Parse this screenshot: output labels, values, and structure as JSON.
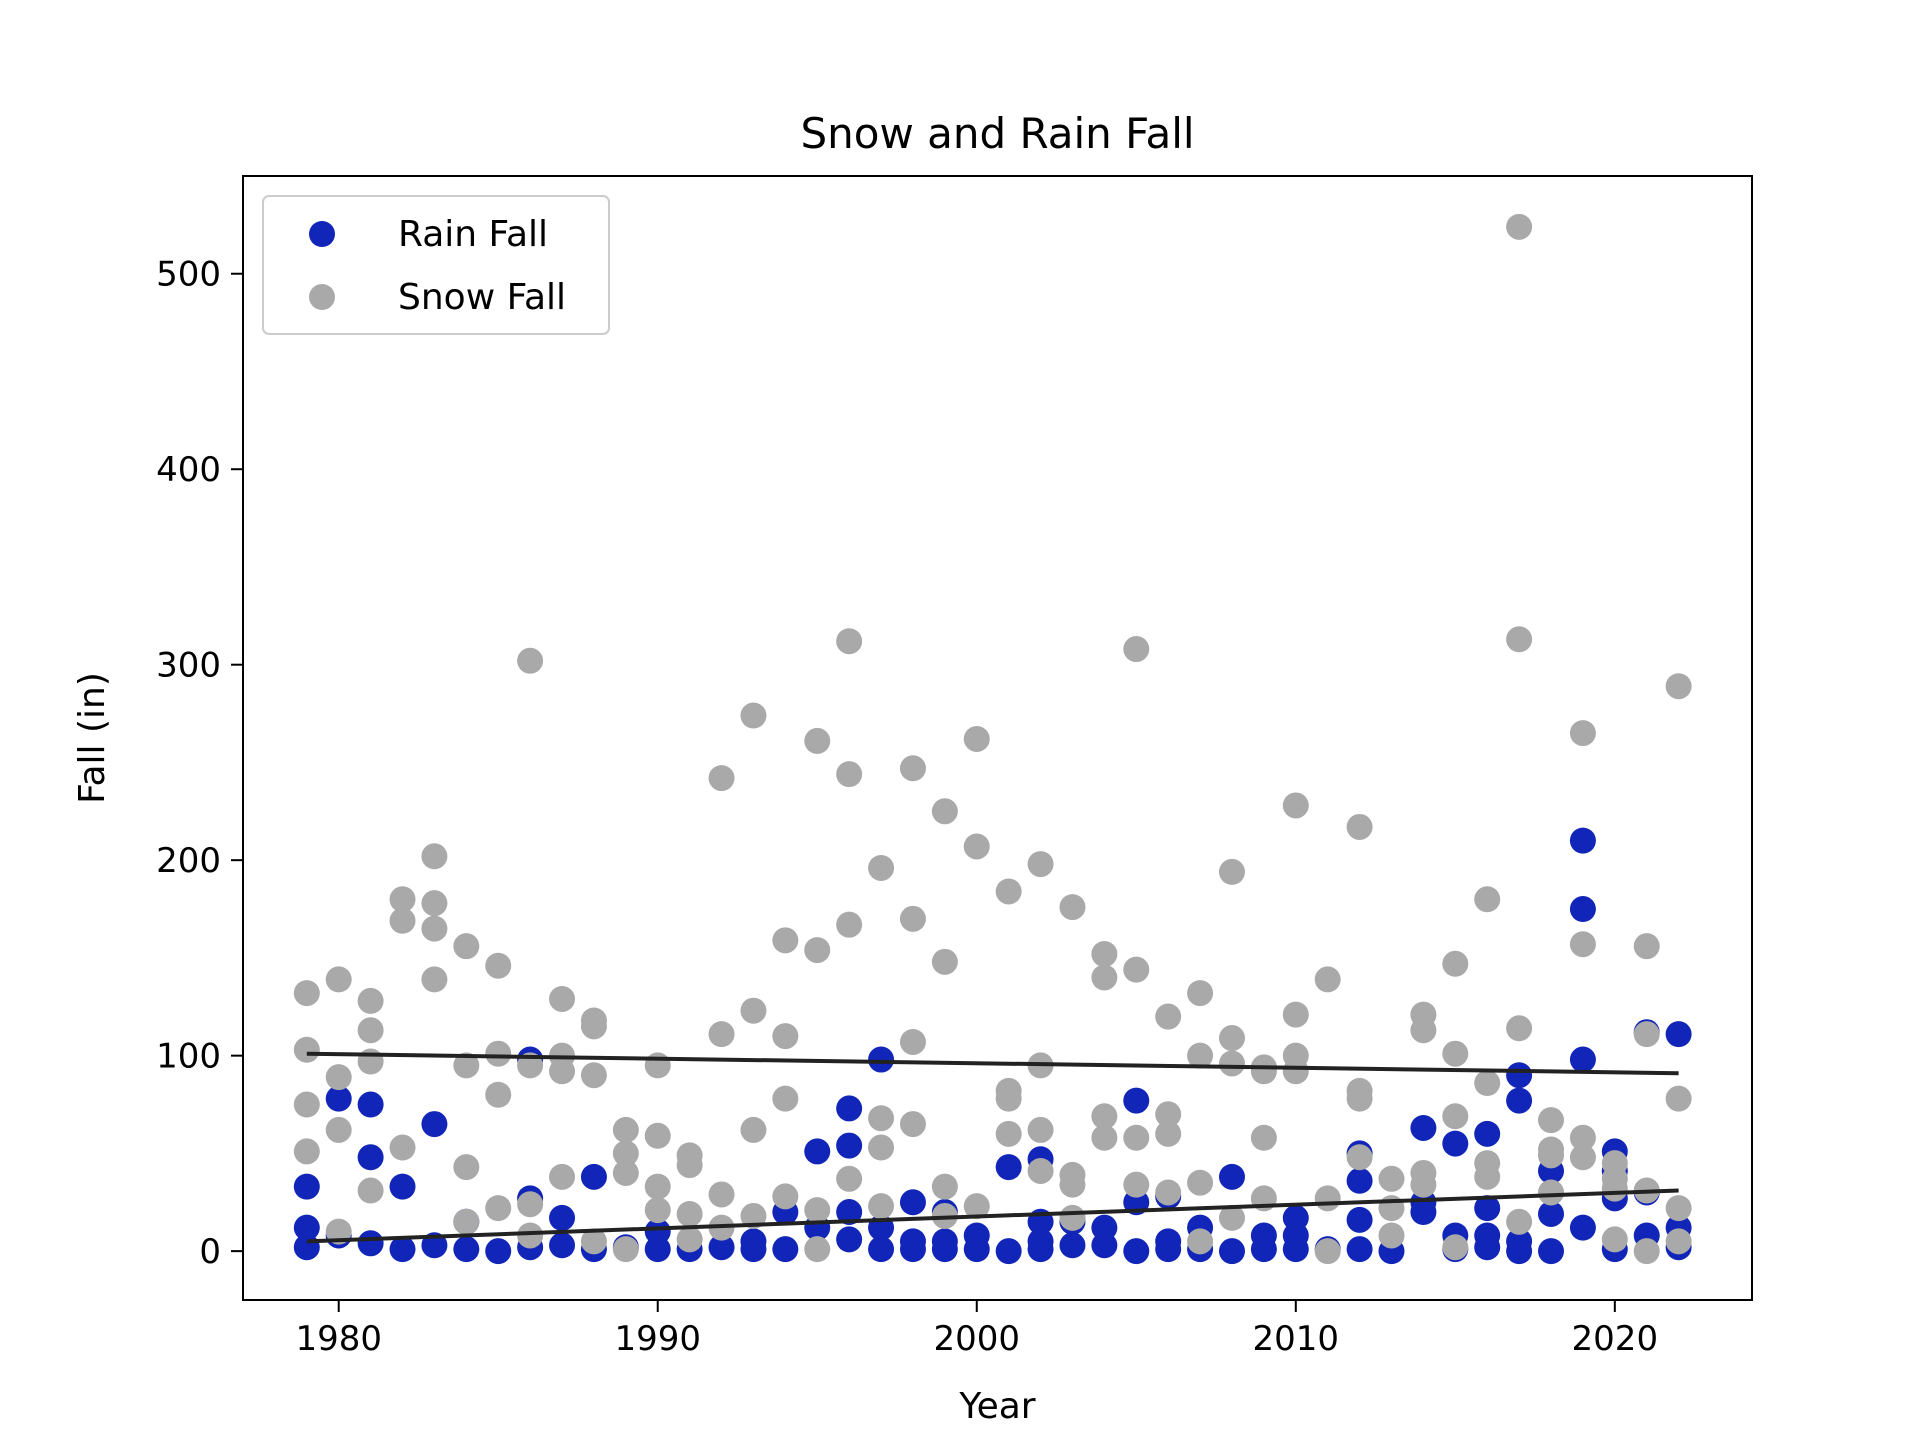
{
  "chart_data": {
    "type": "scatter",
    "title": "Snow and Rain Fall",
    "xlabel": "Year",
    "ylabel": "Fall (in)",
    "xlim": [
      1977,
      2024.3
    ],
    "ylim": [
      -25,
      550
    ],
    "xticks": [
      "1980",
      "1990",
      "2000",
      "2010",
      "2020"
    ],
    "yticks": [
      "0",
      "100",
      "200",
      "300",
      "400",
      "500"
    ],
    "grid": false,
    "legend_position": "top-left",
    "series": [
      {
        "name": "Rain Fall",
        "color": "#1126b8",
        "points": [
          [
            1979,
            33
          ],
          [
            1979,
            12
          ],
          [
            1979,
            2
          ],
          [
            1980,
            78
          ],
          [
            1980,
            8
          ],
          [
            1981,
            75
          ],
          [
            1981,
            48
          ],
          [
            1981,
            4
          ],
          [
            1982,
            33
          ],
          [
            1982,
            1
          ],
          [
            1983,
            65
          ],
          [
            1983,
            3
          ],
          [
            1984,
            15
          ],
          [
            1984,
            1
          ],
          [
            1985,
            0
          ],
          [
            1986,
            98
          ],
          [
            1986,
            27
          ],
          [
            1986,
            2
          ],
          [
            1987,
            17
          ],
          [
            1987,
            3
          ],
          [
            1988,
            38
          ],
          [
            1988,
            1
          ],
          [
            1989,
            2
          ],
          [
            1990,
            10
          ],
          [
            1990,
            1
          ],
          [
            1991,
            1
          ],
          [
            1992,
            2
          ],
          [
            1993,
            5
          ],
          [
            1993,
            1
          ],
          [
            1994,
            20
          ],
          [
            1994,
            1
          ],
          [
            1995,
            51
          ],
          [
            1995,
            12
          ],
          [
            1996,
            73
          ],
          [
            1996,
            54
          ],
          [
            1996,
            20
          ],
          [
            1996,
            6
          ],
          [
            1997,
            98
          ],
          [
            1997,
            12
          ],
          [
            1997,
            1
          ],
          [
            1998,
            25
          ],
          [
            1998,
            5
          ],
          [
            1998,
            1
          ],
          [
            1999,
            20
          ],
          [
            1999,
            5
          ],
          [
            1999,
            1
          ],
          [
            2000,
            8
          ],
          [
            2000,
            1
          ],
          [
            2001,
            43
          ],
          [
            2001,
            0
          ],
          [
            2002,
            47
          ],
          [
            2002,
            15
          ],
          [
            2002,
            5
          ],
          [
            2002,
            1
          ],
          [
            2003,
            15
          ],
          [
            2003,
            3
          ],
          [
            2004,
            12
          ],
          [
            2004,
            3
          ],
          [
            2005,
            77
          ],
          [
            2005,
            25
          ],
          [
            2005,
            0
          ],
          [
            2006,
            28
          ],
          [
            2006,
            5
          ],
          [
            2006,
            1
          ],
          [
            2007,
            12
          ],
          [
            2007,
            1
          ],
          [
            2008,
            38
          ],
          [
            2008,
            0
          ],
          [
            2009,
            8
          ],
          [
            2009,
            1
          ],
          [
            2010,
            17
          ],
          [
            2010,
            8
          ],
          [
            2010,
            1
          ],
          [
            2011,
            1
          ],
          [
            2012,
            50
          ],
          [
            2012,
            36
          ],
          [
            2012,
            16
          ],
          [
            2012,
            1
          ],
          [
            2013,
            0
          ],
          [
            2014,
            63
          ],
          [
            2014,
            25
          ],
          [
            2014,
            20
          ],
          [
            2015,
            55
          ],
          [
            2015,
            8
          ],
          [
            2015,
            1
          ],
          [
            2016,
            60
          ],
          [
            2016,
            22
          ],
          [
            2016,
            8
          ],
          [
            2016,
            2
          ],
          [
            2017,
            90
          ],
          [
            2017,
            77
          ],
          [
            2017,
            5
          ],
          [
            2017,
            0
          ],
          [
            2018,
            41
          ],
          [
            2018,
            19
          ],
          [
            2018,
            0
          ],
          [
            2019,
            210
          ],
          [
            2019,
            175
          ],
          [
            2019,
            98
          ],
          [
            2019,
            12
          ],
          [
            2020,
            51
          ],
          [
            2020,
            41
          ],
          [
            2020,
            27
          ],
          [
            2020,
            1
          ],
          [
            2021,
            112
          ],
          [
            2021,
            30
          ],
          [
            2021,
            8
          ],
          [
            2022,
            111
          ],
          [
            2022,
            12
          ],
          [
            2022,
            2
          ]
        ]
      },
      {
        "name": "Snow Fall",
        "color": "#a9a9a9",
        "points": [
          [
            1979,
            132
          ],
          [
            1979,
            103
          ],
          [
            1979,
            75
          ],
          [
            1979,
            51
          ],
          [
            1980,
            139
          ],
          [
            1980,
            89
          ],
          [
            1980,
            62
          ],
          [
            1980,
            10
          ],
          [
            1981,
            128
          ],
          [
            1981,
            113
          ],
          [
            1981,
            97
          ],
          [
            1981,
            31
          ],
          [
            1982,
            180
          ],
          [
            1982,
            169
          ],
          [
            1982,
            53
          ],
          [
            1983,
            202
          ],
          [
            1983,
            178
          ],
          [
            1983,
            165
          ],
          [
            1983,
            139
          ],
          [
            1984,
            156
          ],
          [
            1984,
            95
          ],
          [
            1984,
            43
          ],
          [
            1984,
            15
          ],
          [
            1985,
            146
          ],
          [
            1985,
            101
          ],
          [
            1985,
            80
          ],
          [
            1985,
            22
          ],
          [
            1986,
            302
          ],
          [
            1986,
            95
          ],
          [
            1986,
            24
          ],
          [
            1986,
            8
          ],
          [
            1987,
            129
          ],
          [
            1987,
            100
          ],
          [
            1987,
            92
          ],
          [
            1987,
            38
          ],
          [
            1988,
            118
          ],
          [
            1988,
            115
          ],
          [
            1988,
            90
          ],
          [
            1988,
            5
          ],
          [
            1989,
            62
          ],
          [
            1989,
            50
          ],
          [
            1989,
            40
          ],
          [
            1989,
            1
          ],
          [
            1990,
            95
          ],
          [
            1990,
            59
          ],
          [
            1990,
            33
          ],
          [
            1990,
            21
          ],
          [
            1991,
            49
          ],
          [
            1991,
            44
          ],
          [
            1991,
            19
          ],
          [
            1991,
            6
          ],
          [
            1992,
            242
          ],
          [
            1992,
            111
          ],
          [
            1992,
            29
          ],
          [
            1992,
            12
          ],
          [
            1993,
            274
          ],
          [
            1993,
            123
          ],
          [
            1993,
            62
          ],
          [
            1993,
            18
          ],
          [
            1994,
            159
          ],
          [
            1994,
            110
          ],
          [
            1994,
            78
          ],
          [
            1994,
            28
          ],
          [
            1995,
            261
          ],
          [
            1995,
            154
          ],
          [
            1995,
            21
          ],
          [
            1995,
            1
          ],
          [
            1996,
            312
          ],
          [
            1996,
            244
          ],
          [
            1996,
            167
          ],
          [
            1996,
            37
          ],
          [
            1997,
            196
          ],
          [
            1997,
            68
          ],
          [
            1997,
            53
          ],
          [
            1997,
            23
          ],
          [
            1998,
            247
          ],
          [
            1998,
            170
          ],
          [
            1998,
            107
          ],
          [
            1998,
            65
          ],
          [
            1999,
            225
          ],
          [
            1999,
            148
          ],
          [
            1999,
            33
          ],
          [
            1999,
            18
          ],
          [
            2000,
            262
          ],
          [
            2000,
            207
          ],
          [
            2000,
            23
          ],
          [
            2001,
            184
          ],
          [
            2001,
            82
          ],
          [
            2001,
            78
          ],
          [
            2001,
            60
          ],
          [
            2002,
            198
          ],
          [
            2002,
            95
          ],
          [
            2002,
            62
          ],
          [
            2002,
            41
          ],
          [
            2003,
            176
          ],
          [
            2003,
            39
          ],
          [
            2003,
            34
          ],
          [
            2003,
            17
          ],
          [
            2004,
            152
          ],
          [
            2004,
            140
          ],
          [
            2004,
            69
          ],
          [
            2004,
            58
          ],
          [
            2005,
            308
          ],
          [
            2005,
            144
          ],
          [
            2005,
            58
          ],
          [
            2005,
            34
          ],
          [
            2006,
            120
          ],
          [
            2006,
            70
          ],
          [
            2006,
            60
          ],
          [
            2006,
            30
          ],
          [
            2007,
            132
          ],
          [
            2007,
            100
          ],
          [
            2007,
            35
          ],
          [
            2007,
            5
          ],
          [
            2008,
            194
          ],
          [
            2008,
            109
          ],
          [
            2008,
            96
          ],
          [
            2008,
            17
          ],
          [
            2009,
            94
          ],
          [
            2009,
            92
          ],
          [
            2009,
            58
          ],
          [
            2009,
            27
          ],
          [
            2010,
            228
          ],
          [
            2010,
            121
          ],
          [
            2010,
            100
          ],
          [
            2010,
            92
          ],
          [
            2011,
            139
          ],
          [
            2011,
            27
          ],
          [
            2011,
            0
          ],
          [
            2012,
            217
          ],
          [
            2012,
            82
          ],
          [
            2012,
            78
          ],
          [
            2012,
            48
          ],
          [
            2013,
            37
          ],
          [
            2013,
            22
          ],
          [
            2013,
            8
          ],
          [
            2014,
            121
          ],
          [
            2014,
            113
          ],
          [
            2014,
            40
          ],
          [
            2014,
            34
          ],
          [
            2015,
            147
          ],
          [
            2015,
            101
          ],
          [
            2015,
            69
          ],
          [
            2015,
            2
          ],
          [
            2016,
            180
          ],
          [
            2016,
            86
          ],
          [
            2016,
            45
          ],
          [
            2016,
            38
          ],
          [
            2017,
            524
          ],
          [
            2017,
            313
          ],
          [
            2017,
            114
          ],
          [
            2017,
            15
          ],
          [
            2018,
            67
          ],
          [
            2018,
            52
          ],
          [
            2018,
            49
          ],
          [
            2018,
            30
          ],
          [
            2019,
            265
          ],
          [
            2019,
            157
          ],
          [
            2019,
            58
          ],
          [
            2019,
            48
          ],
          [
            2020,
            45
          ],
          [
            2020,
            37
          ],
          [
            2020,
            32
          ],
          [
            2020,
            6
          ],
          [
            2021,
            156
          ],
          [
            2021,
            111
          ],
          [
            2021,
            31
          ],
          [
            2021,
            0
          ],
          [
            2022,
            289
          ],
          [
            2022,
            78
          ],
          [
            2022,
            22
          ],
          [
            2022,
            5
          ]
        ]
      }
    ],
    "trend_lines": [
      {
        "color": "#222222",
        "x": [
          1979,
          2022
        ],
        "y": [
          101,
          91
        ]
      },
      {
        "color": "#222222",
        "x": [
          1979,
          2022
        ],
        "y": [
          5,
          31
        ]
      }
    ]
  }
}
